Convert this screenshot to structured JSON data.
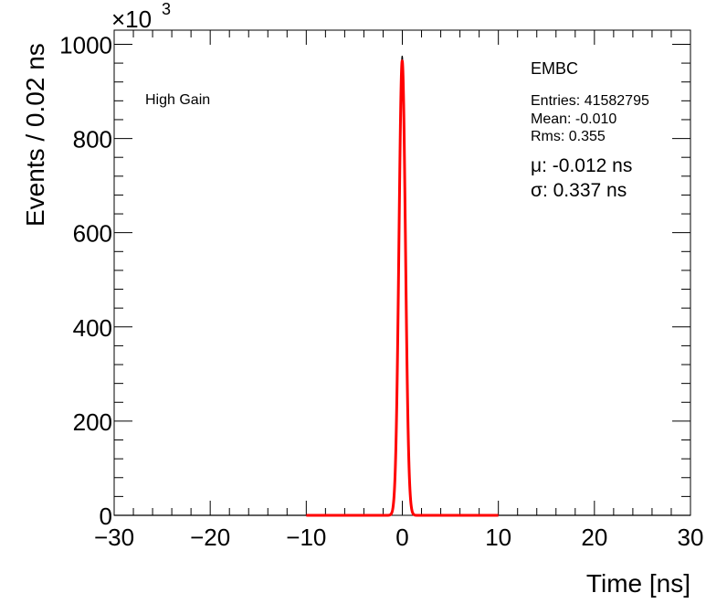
{
  "chart_data": {
    "type": "line",
    "xlabel": "Time [ns]",
    "ylabel": "Events / 0.02 ns",
    "y_multiplier": "×10",
    "y_multiplier_exp": "3",
    "xlim": [
      -30,
      30
    ],
    "ylim": [
      0,
      1030
    ],
    "x_ticks": [
      -30,
      -20,
      -10,
      0,
      10,
      20,
      30
    ],
    "x_tick_labels": [
      "−30",
      "−20",
      "−10",
      "0",
      "10",
      "20",
      "30"
    ],
    "y_ticks": [
      0,
      200,
      400,
      600,
      800,
      1000
    ],
    "y_tick_labels": [
      "0",
      "200",
      "400",
      "600",
      "800",
      "1000"
    ],
    "annotations": {
      "gain": "High Gain",
      "detector": "EMBC",
      "entries": "Entries: 41582795",
      "mean": "Mean: -0.010",
      "rms": "Rms: 0.355",
      "mu": "μ: -0.012 ns",
      "sigma": "σ: 0.337 ns"
    },
    "series": [
      {
        "style": "histogram",
        "color": "#000000",
        "gaussian": {
          "amplitude": 975,
          "mean": -0.012,
          "sigma": 0.337
        },
        "x_range": [
          -30,
          30
        ]
      },
      {
        "style": "fit",
        "color": "#ff0000",
        "gaussian": {
          "amplitude": 965,
          "mean": -0.012,
          "sigma": 0.337
        },
        "x_range": [
          -10,
          10
        ]
      }
    ]
  }
}
